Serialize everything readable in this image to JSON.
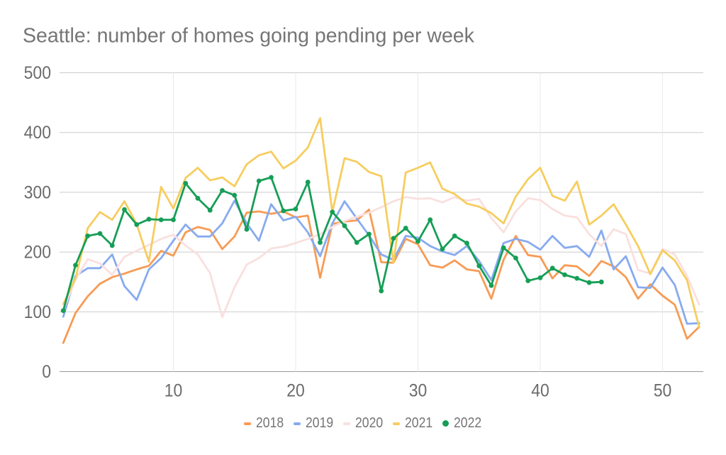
{
  "chart_data": {
    "type": "line",
    "title": "Seattle: number of homes going pending per week",
    "xlabel": "",
    "ylabel": "",
    "xlim": [
      1,
      53
    ],
    "ylim": [
      0,
      500
    ],
    "x_ticks": [
      "10",
      "20",
      "30",
      "40",
      "50"
    ],
    "x_tick_values": [
      10,
      20,
      30,
      40,
      50
    ],
    "y_ticks": [
      "0",
      "100",
      "200",
      "300",
      "400",
      "500"
    ],
    "y_tick_values": [
      0,
      100,
      200,
      300,
      400,
      500
    ],
    "grid": true,
    "legend_position": "bottom",
    "x_description": "week of year (1-53)",
    "series": [
      {
        "name": "2018",
        "color": "#f79b54",
        "marker": "dash",
        "values": [
          48,
          98,
          126,
          147,
          158,
          164,
          171,
          177,
          202,
          194,
          233,
          242,
          237,
          205,
          226,
          266,
          268,
          264,
          268,
          258,
          261,
          157,
          247,
          251,
          253,
          271,
          183,
          182,
          222,
          213,
          178,
          174,
          186,
          171,
          168,
          122,
          187,
          227,
          195,
          192,
          156,
          178,
          176,
          160,
          185,
          176,
          158,
          122,
          146,
          127,
          112,
          55,
          75
        ]
      },
      {
        "name": "2019",
        "color": "#87abf0",
        "marker": "dash",
        "values": [
          92,
          160,
          173,
          173,
          196,
          143,
          120,
          171,
          190,
          219,
          246,
          226,
          226,
          248,
          286,
          248,
          219,
          280,
          253,
          259,
          233,
          193,
          248,
          285,
          256,
          228,
          196,
          187,
          227,
          224,
          210,
          201,
          195,
          210,
          185,
          153,
          215,
          222,
          217,
          204,
          227,
          207,
          210,
          192,
          236,
          171,
          193,
          141,
          140,
          174,
          145,
          80,
          81
        ]
      },
      {
        "name": "2020",
        "color": "#f9e0df",
        "marker": "dash",
        "values": [
          103,
          154,
          188,
          181,
          162,
          192,
          202,
          212,
          222,
          229,
          211,
          196,
          165,
          91,
          141,
          179,
          190,
          206,
          209,
          215,
          222,
          230,
          242,
          252,
          259,
          266,
          275,
          285,
          292,
          289,
          290,
          283,
          292,
          286,
          289,
          257,
          233,
          268,
          290,
          287,
          272,
          261,
          258,
          230,
          210,
          238,
          230,
          170,
          164,
          205,
          196,
          160,
          112
        ]
      },
      {
        "name": "2021",
        "color": "#f6cd5f",
        "marker": "dash",
        "values": [
          113,
          156,
          240,
          267,
          254,
          285,
          247,
          184,
          309,
          273,
          324,
          341,
          320,
          325,
          310,
          347,
          362,
          368,
          340,
          353,
          375,
          424,
          267,
          357,
          351,
          334,
          327,
          182,
          333,
          341,
          350,
          306,
          297,
          281,
          276,
          265,
          248,
          293,
          322,
          341,
          294,
          286,
          318,
          246,
          261,
          280,
          246,
          210,
          163,
          203,
          186,
          153,
          74
        ]
      },
      {
        "name": "2022",
        "color": "#169e56",
        "marker": "point",
        "values": [
          102,
          178,
          227,
          231,
          211,
          271,
          246,
          255,
          254,
          254,
          315,
          290,
          270,
          303,
          295,
          238,
          319,
          325,
          269,
          272,
          317,
          216,
          267,
          244,
          216,
          230,
          135,
          223,
          240,
          218,
          254,
          205,
          227,
          215,
          177,
          144,
          207,
          190,
          152,
          157,
          173,
          162,
          156,
          149,
          150
        ]
      }
    ]
  },
  "styling": {
    "background_color": "#ffffff",
    "title_color": "#757575",
    "axis_label_color": "#6b6b6b",
    "legend_label_color": "#757575",
    "horizontal_gridline_color": "#cbcbcb",
    "vertical_gridline_color": "#e9e9e9",
    "baseline_color": "#9a9a9a"
  }
}
